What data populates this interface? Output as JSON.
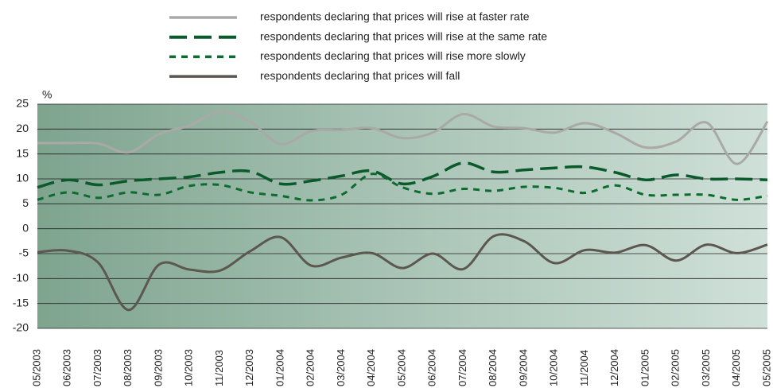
{
  "chart_data": {
    "type": "line",
    "y_label": "%",
    "categories": [
      "05/2003",
      "06/2003",
      "07/2003",
      "08/2003",
      "09/2003",
      "10/2003",
      "11/2003",
      "12/2003",
      "01/2004",
      "02/2004",
      "03/2004",
      "04/2004",
      "05/2004",
      "06/2004",
      "07/2004",
      "08/2004",
      "09/2004",
      "10/2004",
      "11/2004",
      "12/2004",
      "01/2005",
      "02/2005",
      "03/2005",
      "04/2005",
      "05/2005"
    ],
    "series": [
      {
        "name": "respondents declaring that prices will rise at faster rate",
        "color": "#a9a9a6",
        "style": "solid",
        "values": [
          17.2,
          17.2,
          17.1,
          15.3,
          19,
          20.7,
          23.5,
          21.5,
          17,
          19.6,
          19.8,
          20.2,
          18.2,
          19.3,
          23,
          20.5,
          20.2,
          19.3,
          21.2,
          19.2,
          16.3,
          17.5,
          21.3,
          13,
          21.5
        ]
      },
      {
        "name": "respondents declaring that prices will rise at the same rate",
        "color": "#0b5a2c",
        "style": "long-dash",
        "values": [
          8.3,
          9.8,
          8.8,
          9.6,
          10,
          10.4,
          11.3,
          11.5,
          9,
          9.6,
          10.6,
          11.6,
          9,
          10.5,
          13.2,
          11.4,
          11.8,
          12.2,
          12.4,
          11.3,
          9.8,
          10.8,
          10,
          10,
          9.8
        ]
      },
      {
        "name": "respondents declaring that prices will rise more slowly",
        "color": "#0d6b30",
        "style": "short-dash",
        "values": [
          5.8,
          7.3,
          6.2,
          7.3,
          6.8,
          8.6,
          8.8,
          7.3,
          6.6,
          5.7,
          6.8,
          11,
          8.3,
          7,
          8,
          7.6,
          8.4,
          8.2,
          7.2,
          8.7,
          6.8,
          6.8,
          6.8,
          5.8,
          6.6
        ]
      },
      {
        "name": "respondents declaring that prices will fall",
        "color": "#5c574f",
        "style": "solid",
        "values": [
          -4.7,
          -4.4,
          -6.8,
          -16.3,
          -7.2,
          -8.2,
          -8.4,
          -4.5,
          -1.7,
          -7.4,
          -5.8,
          -4.9,
          -7.9,
          -5,
          -8.1,
          -1.5,
          -2.5,
          -6.9,
          -4.3,
          -4.8,
          -3.3,
          -6.4,
          -3.2,
          -4.9,
          -3.2
        ]
      }
    ],
    "ylim": [
      -20,
      25
    ],
    "yticks": [
      -20,
      -15,
      -10,
      -5,
      0,
      5,
      10,
      15,
      20,
      25
    ],
    "grid": true
  }
}
